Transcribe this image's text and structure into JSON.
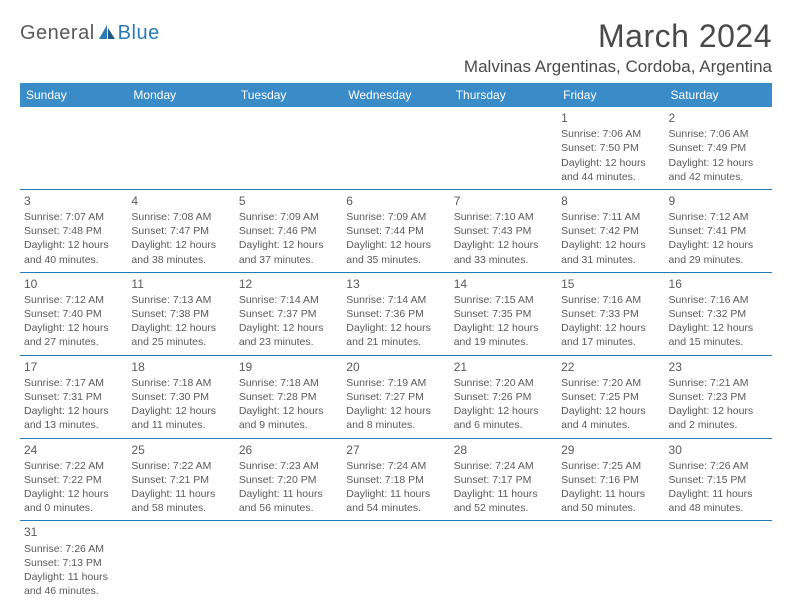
{
  "logo": {
    "general": "General",
    "blue": "Blue"
  },
  "title": "March 2024",
  "location": "Malvinas Argentinas, Cordoba, Argentina",
  "colors": {
    "header_bg": "#3a8cc9",
    "header_text": "#ffffff",
    "border": "#2a7ab8",
    "body_text": "#5a5a5a",
    "title_text": "#4a4a4a"
  },
  "typography": {
    "title_fontsize": 32,
    "location_fontsize": 17,
    "dayhead_fontsize": 12,
    "cell_fontsize": 10.5,
    "daynum_fontsize": 12
  },
  "weekdays": [
    "Sunday",
    "Monday",
    "Tuesday",
    "Wednesday",
    "Thursday",
    "Friday",
    "Saturday"
  ],
  "weeks": [
    [
      null,
      null,
      null,
      null,
      null,
      {
        "d": "1",
        "sr": "Sunrise: 7:06 AM",
        "ss": "Sunset: 7:50 PM",
        "dl1": "Daylight: 12 hours",
        "dl2": "and 44 minutes."
      },
      {
        "d": "2",
        "sr": "Sunrise: 7:06 AM",
        "ss": "Sunset: 7:49 PM",
        "dl1": "Daylight: 12 hours",
        "dl2": "and 42 minutes."
      }
    ],
    [
      {
        "d": "3",
        "sr": "Sunrise: 7:07 AM",
        "ss": "Sunset: 7:48 PM",
        "dl1": "Daylight: 12 hours",
        "dl2": "and 40 minutes."
      },
      {
        "d": "4",
        "sr": "Sunrise: 7:08 AM",
        "ss": "Sunset: 7:47 PM",
        "dl1": "Daylight: 12 hours",
        "dl2": "and 38 minutes."
      },
      {
        "d": "5",
        "sr": "Sunrise: 7:09 AM",
        "ss": "Sunset: 7:46 PM",
        "dl1": "Daylight: 12 hours",
        "dl2": "and 37 minutes."
      },
      {
        "d": "6",
        "sr": "Sunrise: 7:09 AM",
        "ss": "Sunset: 7:44 PM",
        "dl1": "Daylight: 12 hours",
        "dl2": "and 35 minutes."
      },
      {
        "d": "7",
        "sr": "Sunrise: 7:10 AM",
        "ss": "Sunset: 7:43 PM",
        "dl1": "Daylight: 12 hours",
        "dl2": "and 33 minutes."
      },
      {
        "d": "8",
        "sr": "Sunrise: 7:11 AM",
        "ss": "Sunset: 7:42 PM",
        "dl1": "Daylight: 12 hours",
        "dl2": "and 31 minutes."
      },
      {
        "d": "9",
        "sr": "Sunrise: 7:12 AM",
        "ss": "Sunset: 7:41 PM",
        "dl1": "Daylight: 12 hours",
        "dl2": "and 29 minutes."
      }
    ],
    [
      {
        "d": "10",
        "sr": "Sunrise: 7:12 AM",
        "ss": "Sunset: 7:40 PM",
        "dl1": "Daylight: 12 hours",
        "dl2": "and 27 minutes."
      },
      {
        "d": "11",
        "sr": "Sunrise: 7:13 AM",
        "ss": "Sunset: 7:38 PM",
        "dl1": "Daylight: 12 hours",
        "dl2": "and 25 minutes."
      },
      {
        "d": "12",
        "sr": "Sunrise: 7:14 AM",
        "ss": "Sunset: 7:37 PM",
        "dl1": "Daylight: 12 hours",
        "dl2": "and 23 minutes."
      },
      {
        "d": "13",
        "sr": "Sunrise: 7:14 AM",
        "ss": "Sunset: 7:36 PM",
        "dl1": "Daylight: 12 hours",
        "dl2": "and 21 minutes."
      },
      {
        "d": "14",
        "sr": "Sunrise: 7:15 AM",
        "ss": "Sunset: 7:35 PM",
        "dl1": "Daylight: 12 hours",
        "dl2": "and 19 minutes."
      },
      {
        "d": "15",
        "sr": "Sunrise: 7:16 AM",
        "ss": "Sunset: 7:33 PM",
        "dl1": "Daylight: 12 hours",
        "dl2": "and 17 minutes."
      },
      {
        "d": "16",
        "sr": "Sunrise: 7:16 AM",
        "ss": "Sunset: 7:32 PM",
        "dl1": "Daylight: 12 hours",
        "dl2": "and 15 minutes."
      }
    ],
    [
      {
        "d": "17",
        "sr": "Sunrise: 7:17 AM",
        "ss": "Sunset: 7:31 PM",
        "dl1": "Daylight: 12 hours",
        "dl2": "and 13 minutes."
      },
      {
        "d": "18",
        "sr": "Sunrise: 7:18 AM",
        "ss": "Sunset: 7:30 PM",
        "dl1": "Daylight: 12 hours",
        "dl2": "and 11 minutes."
      },
      {
        "d": "19",
        "sr": "Sunrise: 7:18 AM",
        "ss": "Sunset: 7:28 PM",
        "dl1": "Daylight: 12 hours",
        "dl2": "and 9 minutes."
      },
      {
        "d": "20",
        "sr": "Sunrise: 7:19 AM",
        "ss": "Sunset: 7:27 PM",
        "dl1": "Daylight: 12 hours",
        "dl2": "and 8 minutes."
      },
      {
        "d": "21",
        "sr": "Sunrise: 7:20 AM",
        "ss": "Sunset: 7:26 PM",
        "dl1": "Daylight: 12 hours",
        "dl2": "and 6 minutes."
      },
      {
        "d": "22",
        "sr": "Sunrise: 7:20 AM",
        "ss": "Sunset: 7:25 PM",
        "dl1": "Daylight: 12 hours",
        "dl2": "and 4 minutes."
      },
      {
        "d": "23",
        "sr": "Sunrise: 7:21 AM",
        "ss": "Sunset: 7:23 PM",
        "dl1": "Daylight: 12 hours",
        "dl2": "and 2 minutes."
      }
    ],
    [
      {
        "d": "24",
        "sr": "Sunrise: 7:22 AM",
        "ss": "Sunset: 7:22 PM",
        "dl1": "Daylight: 12 hours",
        "dl2": "and 0 minutes."
      },
      {
        "d": "25",
        "sr": "Sunrise: 7:22 AM",
        "ss": "Sunset: 7:21 PM",
        "dl1": "Daylight: 11 hours",
        "dl2": "and 58 minutes."
      },
      {
        "d": "26",
        "sr": "Sunrise: 7:23 AM",
        "ss": "Sunset: 7:20 PM",
        "dl1": "Daylight: 11 hours",
        "dl2": "and 56 minutes."
      },
      {
        "d": "27",
        "sr": "Sunrise: 7:24 AM",
        "ss": "Sunset: 7:18 PM",
        "dl1": "Daylight: 11 hours",
        "dl2": "and 54 minutes."
      },
      {
        "d": "28",
        "sr": "Sunrise: 7:24 AM",
        "ss": "Sunset: 7:17 PM",
        "dl1": "Daylight: 11 hours",
        "dl2": "and 52 minutes."
      },
      {
        "d": "29",
        "sr": "Sunrise: 7:25 AM",
        "ss": "Sunset: 7:16 PM",
        "dl1": "Daylight: 11 hours",
        "dl2": "and 50 minutes."
      },
      {
        "d": "30",
        "sr": "Sunrise: 7:26 AM",
        "ss": "Sunset: 7:15 PM",
        "dl1": "Daylight: 11 hours",
        "dl2": "and 48 minutes."
      }
    ],
    [
      {
        "d": "31",
        "sr": "Sunrise: 7:26 AM",
        "ss": "Sunset: 7:13 PM",
        "dl1": "Daylight: 11 hours",
        "dl2": "and 46 minutes."
      },
      null,
      null,
      null,
      null,
      null,
      null
    ]
  ]
}
